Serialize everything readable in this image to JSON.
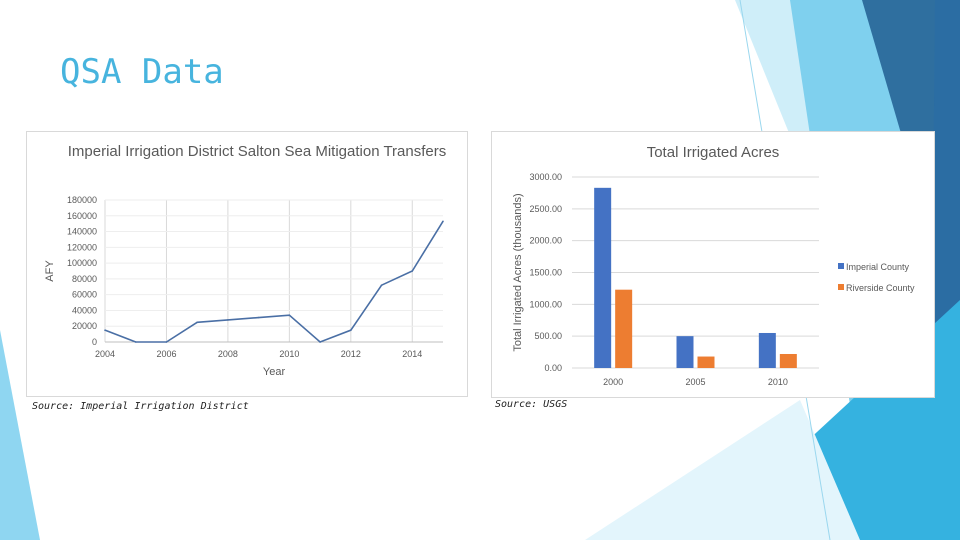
{
  "slide": {
    "title": "QSA Data"
  },
  "colors": {
    "title": "#47b4de",
    "line": "#4a6fa5",
    "imperial": "#4472c4",
    "riverside": "#ed7d31",
    "grid": "#d9d9d9",
    "decor_light": "#bfe6f6",
    "decor_mid": "#5ec2e8",
    "decor_dark": "#2a6b9f"
  },
  "left_source": "Source: Imperial Irrigation District",
  "right_source": "Source: USGS",
  "chart_data": [
    {
      "type": "line",
      "title": "Imperial Irrigation District Salton Sea Mitigation Transfers",
      "xlabel": "Year",
      "ylabel": "AFY",
      "x": [
        2004,
        2005,
        2006,
        2007,
        2008,
        2009,
        2010,
        2011,
        2012,
        2013,
        2014,
        2015
      ],
      "series": [
        {
          "name": "Transfers",
          "values": [
            15000,
            0,
            0,
            25000,
            28000,
            31000,
            34000,
            0,
            15000,
            72000,
            90000,
            153000
          ]
        }
      ],
      "xlim": [
        2004,
        2015
      ],
      "ylim": [
        0,
        180000
      ],
      "x_ticks": [
        "2004",
        "2006",
        "2008",
        "2010",
        "2012",
        "2014"
      ],
      "y_ticks": [
        "0",
        "20000",
        "40000",
        "60000",
        "80000",
        "100000",
        "120000",
        "140000",
        "160000",
        "180000"
      ],
      "grid": true
    },
    {
      "type": "bar",
      "title": "Total Irrigated Acres",
      "xlabel": "",
      "ylabel": "Total Irrigated Acres (thousands)",
      "categories": [
        "2000",
        "2005",
        "2010"
      ],
      "series": [
        {
          "name": "Imperial County",
          "values": [
            2830,
            500,
            550
          ]
        },
        {
          "name": "Riverside County",
          "values": [
            1230,
            180,
            220
          ]
        }
      ],
      "ylim": [
        0,
        3000
      ],
      "y_ticks": [
        "0.00",
        "500.00",
        "1000.00",
        "1500.00",
        "2000.00",
        "2500.00",
        "3000.00"
      ],
      "legend": "right",
      "grid": true
    }
  ]
}
